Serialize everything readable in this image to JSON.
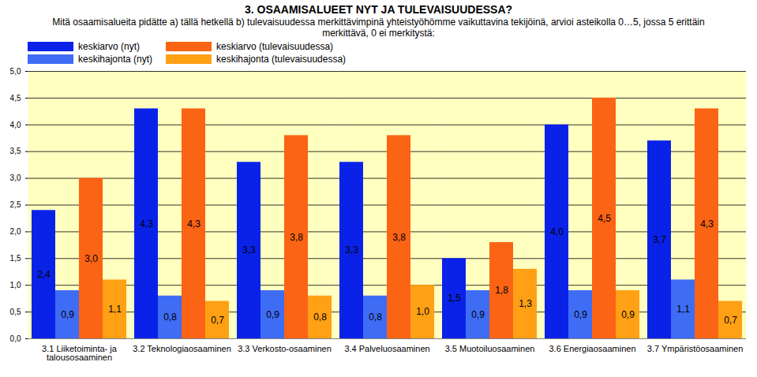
{
  "chart_data": {
    "type": "bar",
    "title": "3. OSAAMISALUEET NYT JA TULEVAISUUDESSA?",
    "subtitle": "Mitä osaamisalueita pidätte a) tällä hetkellä b) tulevaisuudessa merkittävimpinä yhteistyöhömme vaikuttavina tekijöinä, arvioi asteikolla 0…5, jossa 5 erittäin merkittävä, 0 ei merkitystä:",
    "categories": [
      "3.1 Liiketoiminta- ja talousosaaminen",
      "3.2 Teknologiaosaaminen",
      "3.3 Verkosto-osaaminen",
      "3.4 Palveluosaaminen",
      "3.5 Muotoiluosaaminen",
      "3.6 Energiaosaaminen",
      "3.7 Ympäristöosaaminen"
    ],
    "series": [
      {
        "name": "keskiarvo (nyt)",
        "color": "#0a22e8",
        "values": [
          2.4,
          4.3,
          3.3,
          3.3,
          1.5,
          4.0,
          3.7
        ],
        "value_labels": [
          "2,4",
          "4,3",
          "3,3",
          "3,3",
          "1,5",
          "4,0",
          "3,7"
        ]
      },
      {
        "name": "keskihajonta (nyt)",
        "color": "#3f6cf5",
        "values": [
          0.9,
          0.8,
          0.9,
          0.8,
          0.9,
          0.9,
          1.1
        ],
        "value_labels": [
          "0,9",
          "0,8",
          "0,9",
          "0,8",
          "0,9",
          "0,9",
          "1,1"
        ]
      },
      {
        "name": "keskiarvo (tulevaisuudessa)",
        "color": "#fa6414",
        "values": [
          3.0,
          4.3,
          3.8,
          3.8,
          1.8,
          4.5,
          4.3
        ],
        "value_labels": [
          "3,0",
          "4,3",
          "3,8",
          "3,8",
          "1,8",
          "4,5",
          "4,3"
        ]
      },
      {
        "name": "keskihajonta (tulevaisuudessa)",
        "color": "#ffa015",
        "values": [
          1.1,
          0.7,
          0.8,
          1.0,
          1.3,
          0.9,
          0.7
        ],
        "value_labels": [
          "1,1",
          "0,7",
          "0,8",
          "1,0",
          "1,3",
          "0,9",
          "0,7"
        ]
      }
    ],
    "ylim": [
      0,
      5
    ],
    "yticks": [
      {
        "value": 0,
        "label": "0,0"
      },
      {
        "value": 0.5,
        "label": "0,5"
      },
      {
        "value": 1,
        "label": "1,0"
      },
      {
        "value": 1.5,
        "label": "1,5"
      },
      {
        "value": 2,
        "label": "2,0"
      },
      {
        "value": 2.5,
        "label": "2,5"
      },
      {
        "value": 3,
        "label": "3,0"
      },
      {
        "value": 3.5,
        "label": "3,5"
      },
      {
        "value": 4,
        "label": "4,0"
      },
      {
        "value": 4.5,
        "label": "4,5"
      },
      {
        "value": 5,
        "label": "5,0"
      }
    ],
    "grid": true,
    "data_labels": true,
    "legend": "top-left"
  }
}
